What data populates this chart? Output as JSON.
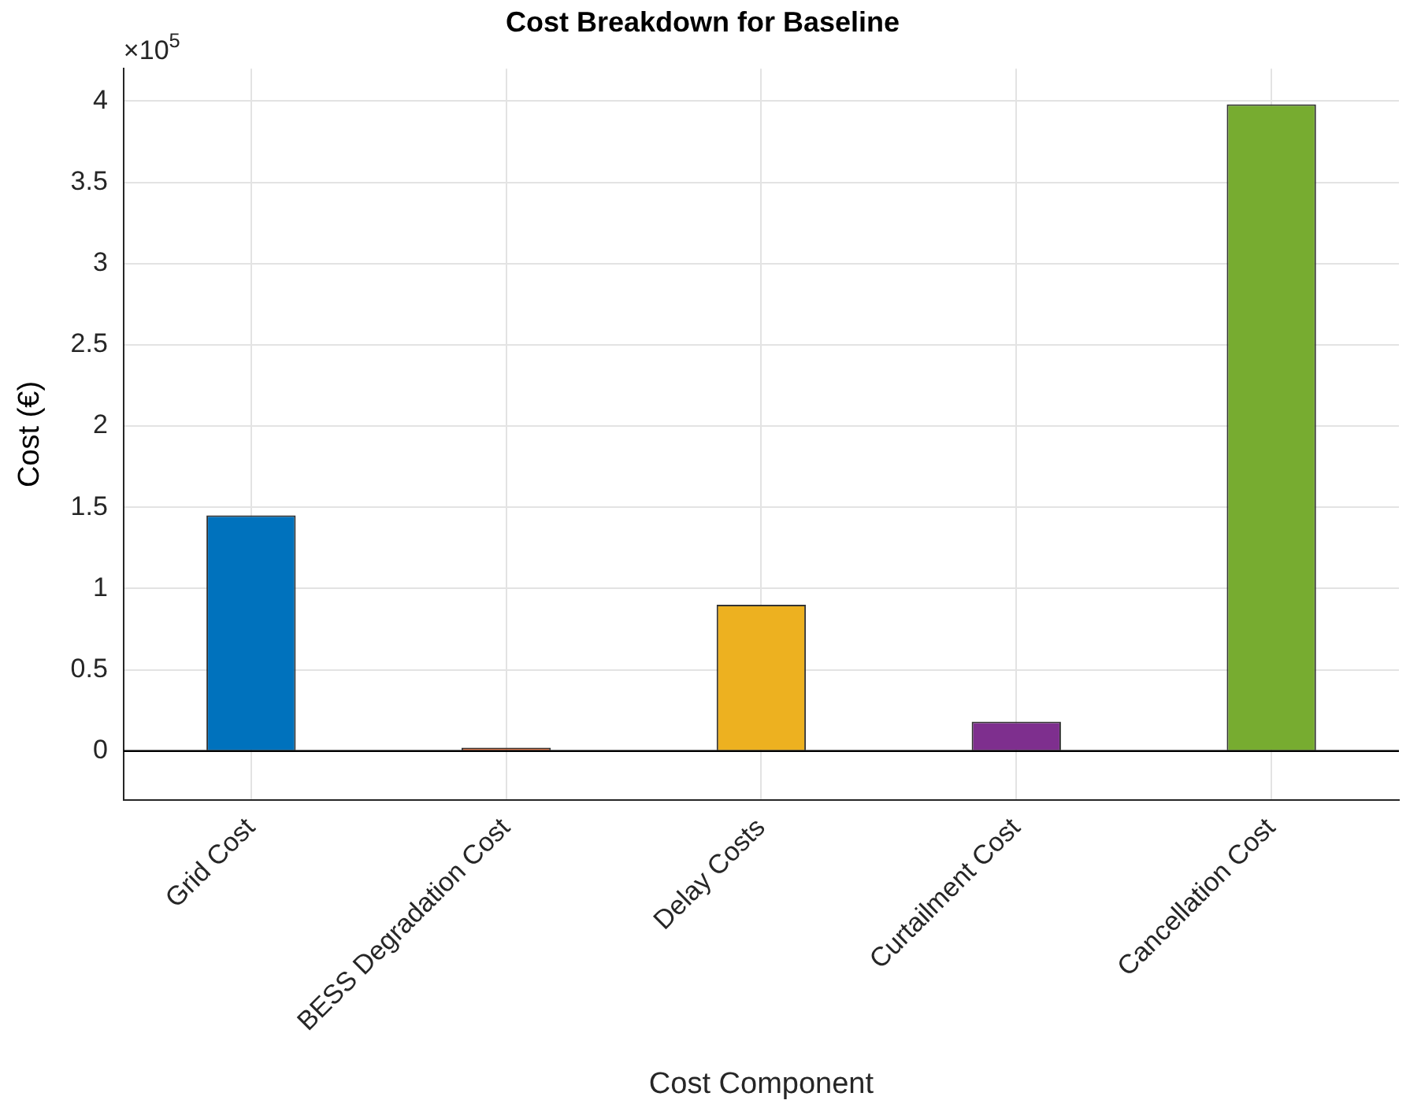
{
  "chart_data": {
    "type": "bar",
    "title": "Cost Breakdown for Baseline",
    "xlabel": "Cost Component",
    "ylabel": "Cost (€)",
    "categories": [
      "Grid Cost",
      "BESS Degradation Cost",
      "Delay Costs",
      "Curtailment Cost",
      "Cancellation Cost"
    ],
    "values": [
      1.45,
      0.02,
      0.9,
      0.18,
      3.98
    ],
    "colors": [
      "#0072bd",
      "#d95319",
      "#edb120",
      "#7e2f8e",
      "#77ac30"
    ],
    "ylim": [
      -0.3,
      4.2
    ],
    "yticks": [
      0,
      0.5,
      1,
      1.5,
      2,
      2.5,
      3,
      3.5,
      4
    ],
    "ref_lines": [
      {
        "axis": "y",
        "value": 0,
        "color": "#000000"
      }
    ],
    "annotations": [
      "×10$^{5}$"
    ],
    "grid": true,
    "legend": false
  }
}
